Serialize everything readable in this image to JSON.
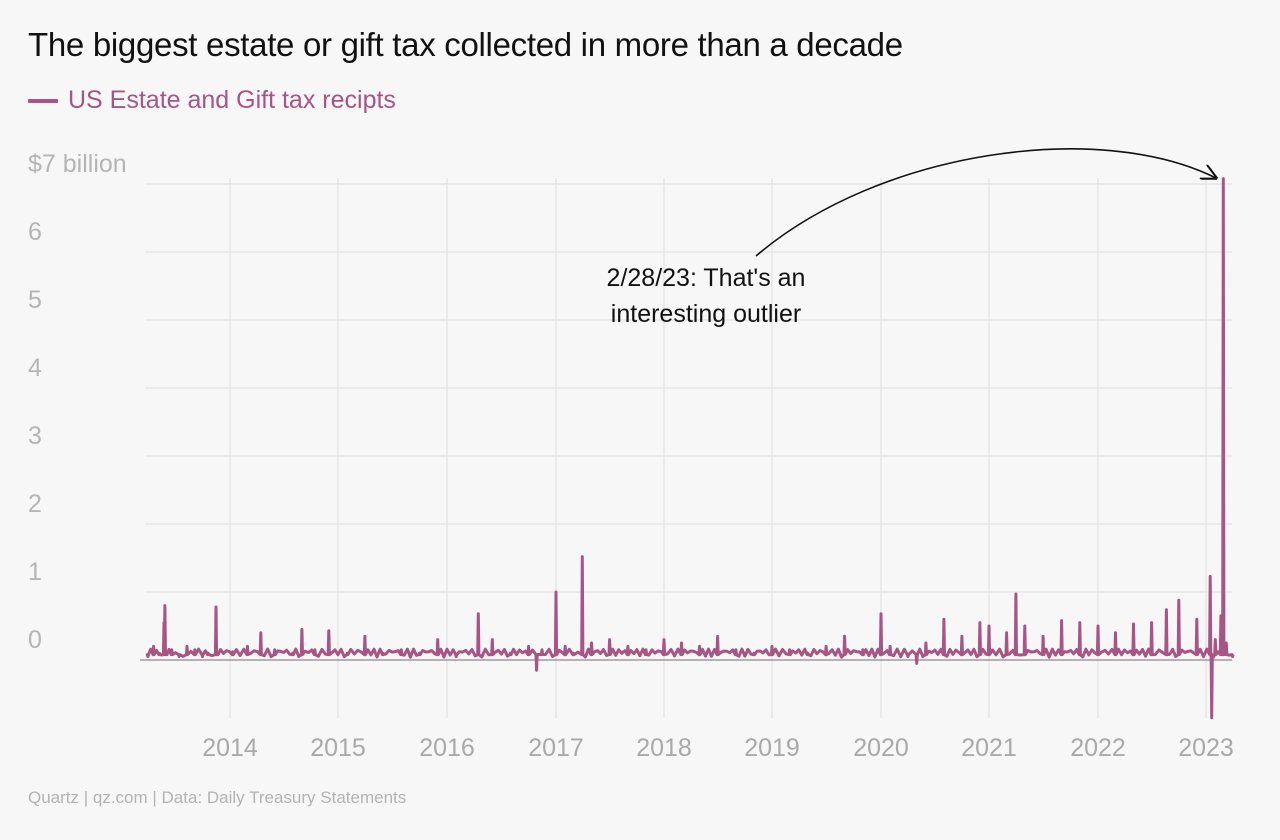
{
  "chart_data": {
    "type": "line",
    "title": "The biggest estate or gift tax collected in more than a decade",
    "series": [
      {
        "name": "US Estate and Gift tax recipts",
        "color": "#a85586",
        "points": [
          [
            "2013-04-01",
            0.05
          ],
          [
            "2013-04-20",
            0.2
          ],
          [
            "2013-05-10",
            0.1
          ],
          [
            "2013-05-25",
            0.55
          ],
          [
            "2013-05-28",
            0.8
          ],
          [
            "2013-06-02",
            0.1
          ],
          [
            "2013-06-20",
            0.15
          ],
          [
            "2013-07-15",
            0.05
          ],
          [
            "2013-08-10",
            0.2
          ],
          [
            "2013-09-05",
            0.15
          ],
          [
            "2013-10-01",
            0.05
          ],
          [
            "2013-10-20",
            0.1
          ],
          [
            "2013-11-15",
            0.78
          ],
          [
            "2013-11-20",
            0.1
          ],
          [
            "2014-01-10",
            0.12
          ],
          [
            "2014-03-01",
            0.2
          ],
          [
            "2014-04-15",
            0.4
          ],
          [
            "2014-06-01",
            0.15
          ],
          [
            "2014-08-01",
            0.1
          ],
          [
            "2014-09-01",
            0.45
          ],
          [
            "2014-10-15",
            0.15
          ],
          [
            "2014-12-01",
            0.43
          ],
          [
            "2015-02-01",
            0.1
          ],
          [
            "2015-04-01",
            0.35
          ],
          [
            "2015-06-01",
            0.1
          ],
          [
            "2015-08-01",
            0.15
          ],
          [
            "2015-10-01",
            0.1
          ],
          [
            "2015-12-01",
            0.3
          ],
          [
            "2016-02-01",
            0.05
          ],
          [
            "2016-04-15",
            0.68
          ],
          [
            "2016-06-01",
            0.3
          ],
          [
            "2016-08-01",
            0.1
          ],
          [
            "2016-10-01",
            0.2
          ],
          [
            "2016-10-28",
            -0.15
          ],
          [
            "2016-11-15",
            0.15
          ],
          [
            "2017-01-01",
            1.0
          ],
          [
            "2017-02-01",
            0.2
          ],
          [
            "2017-03-01",
            0.1
          ],
          [
            "2017-03-31",
            1.52
          ],
          [
            "2017-05-01",
            0.25
          ],
          [
            "2017-07-01",
            0.3
          ],
          [
            "2017-09-01",
            0.2
          ],
          [
            "2017-11-01",
            0.15
          ],
          [
            "2018-01-01",
            0.3
          ],
          [
            "2018-03-01",
            0.25
          ],
          [
            "2018-05-01",
            0.2
          ],
          [
            "2018-07-01",
            0.35
          ],
          [
            "2018-09-01",
            0.15
          ],
          [
            "2018-11-01",
            0.1
          ],
          [
            "2019-01-01",
            0.2
          ],
          [
            "2019-03-01",
            0.15
          ],
          [
            "2019-05-01",
            0.1
          ],
          [
            "2019-07-01",
            0.2
          ],
          [
            "2019-09-01",
            0.35
          ],
          [
            "2019-11-01",
            0.15
          ],
          [
            "2020-01-01",
            0.68
          ],
          [
            "2020-02-01",
            0.2
          ],
          [
            "2020-04-01",
            0.05
          ],
          [
            "2020-05-01",
            -0.05
          ],
          [
            "2020-06-01",
            0.25
          ],
          [
            "2020-08-01",
            0.6
          ],
          [
            "2020-10-01",
            0.35
          ],
          [
            "2020-12-01",
            0.55
          ],
          [
            "2021-01-01",
            0.5
          ],
          [
            "2021-03-01",
            0.4
          ],
          [
            "2021-04-01",
            0.97
          ],
          [
            "2021-05-01",
            0.5
          ],
          [
            "2021-07-01",
            0.35
          ],
          [
            "2021-09-01",
            0.58
          ],
          [
            "2021-11-01",
            0.55
          ],
          [
            "2022-01-01",
            0.5
          ],
          [
            "2022-03-01",
            0.4
          ],
          [
            "2022-05-01",
            0.53
          ],
          [
            "2022-07-01",
            0.55
          ],
          [
            "2022-08-20",
            0.74
          ],
          [
            "2022-10-01",
            0.88
          ],
          [
            "2022-12-01",
            0.6
          ],
          [
            "2023-01-15",
            1.23
          ],
          [
            "2023-01-20",
            -0.85
          ],
          [
            "2023-02-01",
            0.3
          ],
          [
            "2023-02-20",
            0.65
          ],
          [
            "2023-02-28",
            7.08
          ],
          [
            "2023-03-10",
            0.25
          ],
          [
            "2023-03-31",
            0.05
          ]
        ]
      }
    ],
    "x_ticks": [
      "2014",
      "2015",
      "2016",
      "2017",
      "2018",
      "2019",
      "2020",
      "2021",
      "2022",
      "2023"
    ],
    "y_ticks": [
      "0",
      "1",
      "2",
      "3",
      "4",
      "5",
      "6",
      "$7 billion"
    ],
    "ylim": [
      -0.85,
      7
    ],
    "grid": true,
    "annotation": {
      "line1": "2/28/23: That's an",
      "line2": "interesting outlier",
      "target": [
        "2023-02-28",
        7.08
      ]
    }
  },
  "source": "Quartz | qz.com | Data: Daily Treasury Statements"
}
